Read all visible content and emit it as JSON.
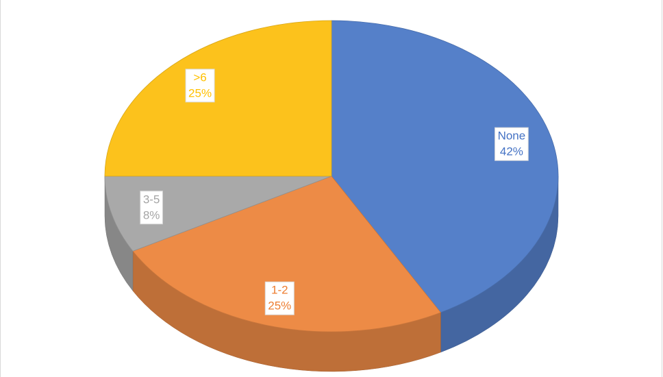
{
  "chart_data": {
    "type": "pie3d",
    "categories": [
      "None",
      "1-2",
      "3-5",
      ">6"
    ],
    "values": [
      42,
      25,
      8,
      25
    ],
    "value_labels": [
      "42%",
      "25%",
      "8%",
      "25%"
    ],
    "colors": [
      "#5580c9",
      "#ed8b46",
      "#a9a9a9",
      "#fcc21c"
    ],
    "label_colors": [
      "#4472c4",
      "#ed7d31",
      "#a5a5a5",
      "#ffc000"
    ]
  }
}
